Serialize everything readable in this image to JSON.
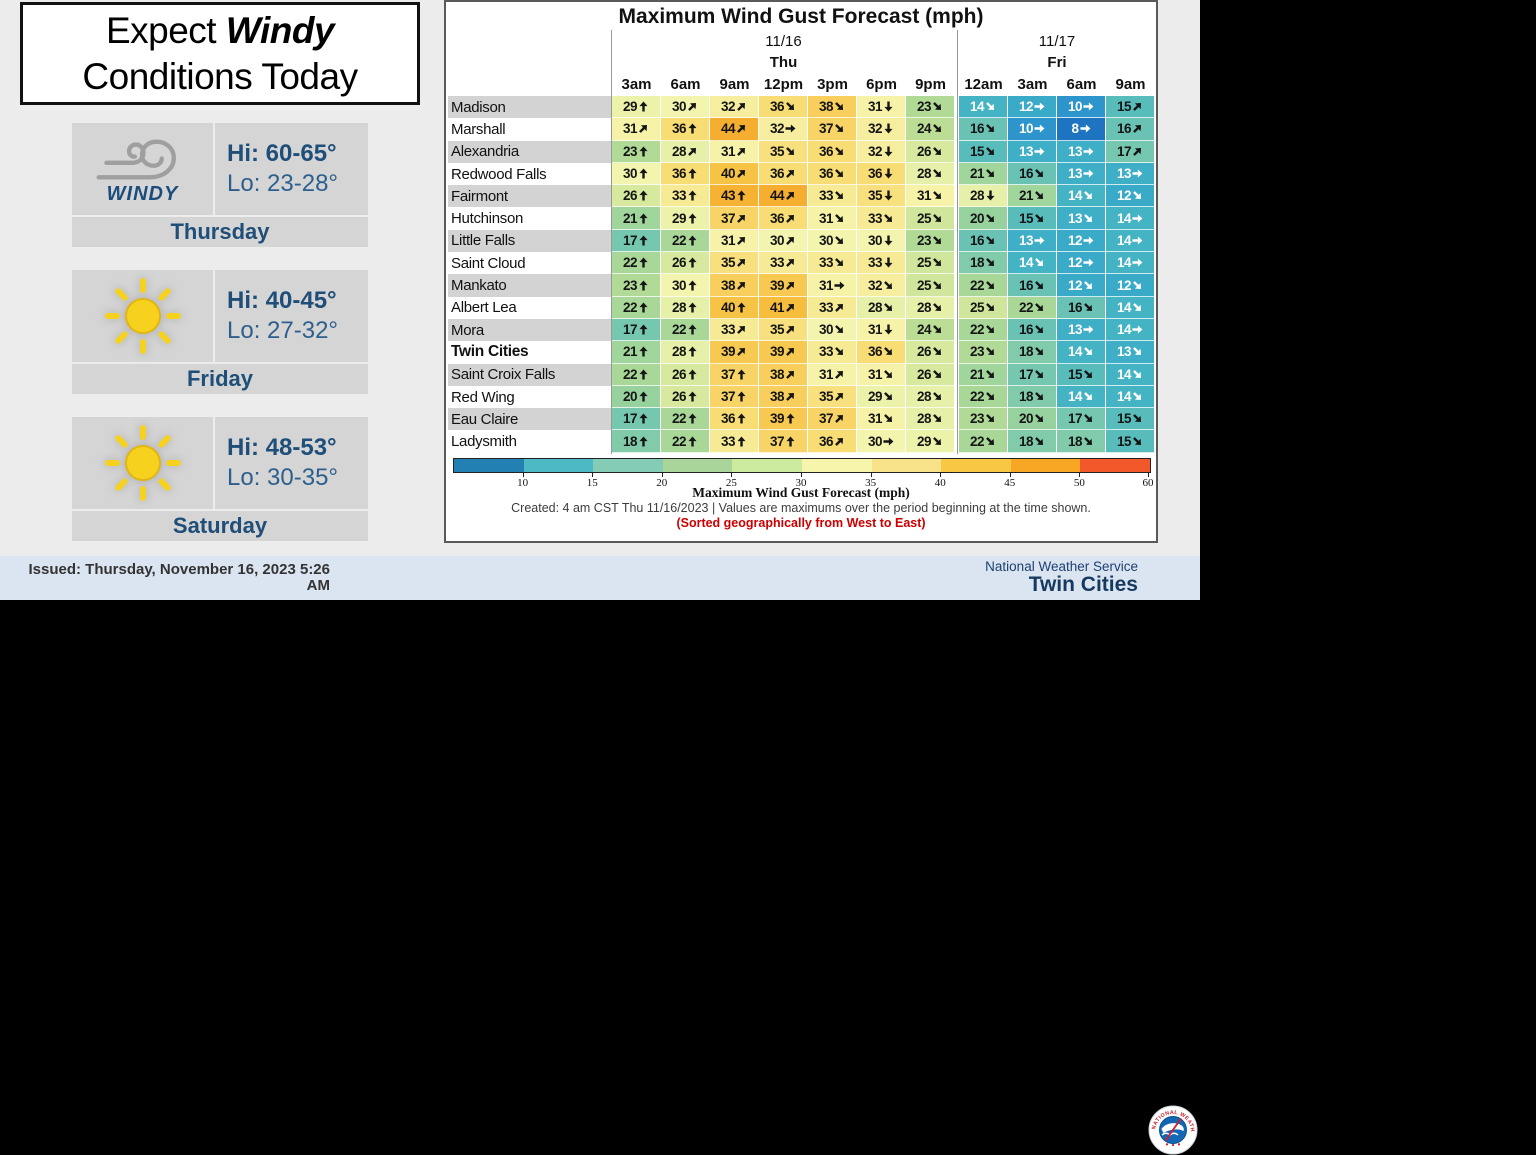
{
  "headline": {
    "prefix": "Expect",
    "emphasis": "Windy",
    "line2": "Conditions Today"
  },
  "forecast_cards": [
    {
      "day": "Thursday",
      "icon": "wind-icon",
      "icon_label": "WINDY",
      "hi": "Hi: 60-65°",
      "lo": "Lo: 23-28°"
    },
    {
      "day": "Friday",
      "icon": "sun-icon",
      "hi": "Hi: 40-45°",
      "lo": "Lo: 27-32°"
    },
    {
      "day": "Saturday",
      "icon": "sun-icon",
      "hi": "Hi: 48-53°",
      "lo": "Lo: 30-35°"
    }
  ],
  "footer": {
    "issued_line1": "Issued: Thursday, November 16, 2023 5:26",
    "issued_line2": "AM",
    "agency": "National Weather Service",
    "office": "Twin Cities",
    "bg": "#dbe5f1"
  },
  "chart_data": {
    "type": "heatmap",
    "title": "Maximum Wind Gust Forecast (mph)",
    "day_groups": [
      {
        "date": "11/16",
        "day": "Thu",
        "span": 7
      },
      {
        "date": "11/17",
        "day": "Fri",
        "span": 4
      }
    ],
    "times": [
      "3am",
      "6am",
      "9am",
      "12pm",
      "3pm",
      "6pm",
      "9pm",
      "12am",
      "3am",
      "6am",
      "9am"
    ],
    "rows": [
      {
        "city": "Madison",
        "cells": [
          [
            29,
            "N"
          ],
          [
            30,
            "NE"
          ],
          [
            32,
            "NE"
          ],
          [
            36,
            "SE"
          ],
          [
            38,
            "SE"
          ],
          [
            31,
            "S"
          ],
          [
            23,
            "SE"
          ],
          [
            14,
            "SE"
          ],
          [
            12,
            "E"
          ],
          [
            10,
            "E"
          ],
          [
            15,
            "NE"
          ]
        ]
      },
      {
        "city": "Marshall",
        "cells": [
          [
            31,
            "NE"
          ],
          [
            36,
            "N"
          ],
          [
            44,
            "NE"
          ],
          [
            32,
            "E"
          ],
          [
            37,
            "SE"
          ],
          [
            32,
            "S"
          ],
          [
            24,
            "SE"
          ],
          [
            16,
            "SE"
          ],
          [
            10,
            "E"
          ],
          [
            8,
            "E"
          ],
          [
            16,
            "NE"
          ]
        ]
      },
      {
        "city": "Alexandria",
        "cells": [
          [
            23,
            "N"
          ],
          [
            28,
            "NE"
          ],
          [
            31,
            "NE"
          ],
          [
            35,
            "SE"
          ],
          [
            36,
            "SE"
          ],
          [
            32,
            "S"
          ],
          [
            26,
            "SE"
          ],
          [
            15,
            "SE"
          ],
          [
            13,
            "E"
          ],
          [
            13,
            "E"
          ],
          [
            17,
            "NE"
          ]
        ]
      },
      {
        "city": "Redwood Falls",
        "cells": [
          [
            30,
            "N"
          ],
          [
            36,
            "N"
          ],
          [
            40,
            "NE"
          ],
          [
            36,
            "NE"
          ],
          [
            36,
            "SE"
          ],
          [
            36,
            "S"
          ],
          [
            28,
            "SE"
          ],
          [
            21,
            "SE"
          ],
          [
            16,
            "SE"
          ],
          [
            13,
            "E"
          ],
          [
            13,
            "E"
          ]
        ]
      },
      {
        "city": "Fairmont",
        "cells": [
          [
            26,
            "N"
          ],
          [
            33,
            "N"
          ],
          [
            43,
            "N"
          ],
          [
            44,
            "NE"
          ],
          [
            33,
            "SE"
          ],
          [
            35,
            "S"
          ],
          [
            31,
            "SE"
          ],
          [
            28,
            "S"
          ],
          [
            21,
            "SE"
          ],
          [
            14,
            "SE"
          ],
          [
            12,
            "SE"
          ]
        ]
      },
      {
        "city": "Hutchinson",
        "cells": [
          [
            21,
            "N"
          ],
          [
            29,
            "N"
          ],
          [
            37,
            "NE"
          ],
          [
            36,
            "NE"
          ],
          [
            31,
            "SE"
          ],
          [
            33,
            "SE"
          ],
          [
            25,
            "SE"
          ],
          [
            20,
            "SE"
          ],
          [
            15,
            "SE"
          ],
          [
            13,
            "SE"
          ],
          [
            14,
            "E"
          ]
        ]
      },
      {
        "city": "Little Falls",
        "cells": [
          [
            17,
            "N"
          ],
          [
            22,
            "N"
          ],
          [
            31,
            "NE"
          ],
          [
            30,
            "NE"
          ],
          [
            30,
            "SE"
          ],
          [
            30,
            "S"
          ],
          [
            23,
            "SE"
          ],
          [
            16,
            "SE"
          ],
          [
            13,
            "E"
          ],
          [
            12,
            "E"
          ],
          [
            14,
            "E"
          ]
        ]
      },
      {
        "city": "Saint Cloud",
        "cells": [
          [
            22,
            "N"
          ],
          [
            26,
            "N"
          ],
          [
            35,
            "NE"
          ],
          [
            33,
            "NE"
          ],
          [
            33,
            "SE"
          ],
          [
            33,
            "S"
          ],
          [
            25,
            "SE"
          ],
          [
            18,
            "SE"
          ],
          [
            14,
            "SE"
          ],
          [
            12,
            "E"
          ],
          [
            14,
            "E"
          ]
        ]
      },
      {
        "city": "Mankato",
        "cells": [
          [
            23,
            "N"
          ],
          [
            30,
            "N"
          ],
          [
            38,
            "NE"
          ],
          [
            39,
            "NE"
          ],
          [
            31,
            "E"
          ],
          [
            32,
            "SE"
          ],
          [
            25,
            "SE"
          ],
          [
            22,
            "SE"
          ],
          [
            16,
            "SE"
          ],
          [
            12,
            "SE"
          ],
          [
            12,
            "SE"
          ]
        ]
      },
      {
        "city": "Albert Lea",
        "cells": [
          [
            22,
            "N"
          ],
          [
            28,
            "N"
          ],
          [
            40,
            "N"
          ],
          [
            41,
            "NE"
          ],
          [
            33,
            "NE"
          ],
          [
            28,
            "SE"
          ],
          [
            28,
            "SE"
          ],
          [
            25,
            "SE"
          ],
          [
            22,
            "SE"
          ],
          [
            16,
            "SE"
          ],
          [
            14,
            "SE"
          ]
        ]
      },
      {
        "city": "Mora",
        "cells": [
          [
            17,
            "N"
          ],
          [
            22,
            "N"
          ],
          [
            33,
            "NE"
          ],
          [
            35,
            "NE"
          ],
          [
            30,
            "SE"
          ],
          [
            31,
            "S"
          ],
          [
            24,
            "SE"
          ],
          [
            22,
            "SE"
          ],
          [
            16,
            "SE"
          ],
          [
            13,
            "E"
          ],
          [
            14,
            "E"
          ]
        ]
      },
      {
        "city": "Twin Cities",
        "bold": true,
        "cells": [
          [
            21,
            "N"
          ],
          [
            28,
            "N"
          ],
          [
            39,
            "NE"
          ],
          [
            39,
            "NE"
          ],
          [
            33,
            "SE"
          ],
          [
            36,
            "SE"
          ],
          [
            26,
            "SE"
          ],
          [
            23,
            "SE"
          ],
          [
            18,
            "SE"
          ],
          [
            14,
            "SE"
          ],
          [
            13,
            "SE"
          ]
        ]
      },
      {
        "city": "Saint Croix Falls",
        "cells": [
          [
            22,
            "N"
          ],
          [
            26,
            "N"
          ],
          [
            37,
            "N"
          ],
          [
            38,
            "NE"
          ],
          [
            31,
            "NE"
          ],
          [
            31,
            "SE"
          ],
          [
            26,
            "SE"
          ],
          [
            21,
            "SE"
          ],
          [
            17,
            "SE"
          ],
          [
            15,
            "SE"
          ],
          [
            14,
            "SE"
          ]
        ]
      },
      {
        "city": "Red Wing",
        "cells": [
          [
            20,
            "N"
          ],
          [
            26,
            "N"
          ],
          [
            37,
            "N"
          ],
          [
            38,
            "NE"
          ],
          [
            35,
            "NE"
          ],
          [
            29,
            "SE"
          ],
          [
            28,
            "SE"
          ],
          [
            22,
            "SE"
          ],
          [
            18,
            "SE"
          ],
          [
            14,
            "SE"
          ],
          [
            14,
            "SE"
          ]
        ]
      },
      {
        "city": "Eau Claire",
        "cells": [
          [
            17,
            "N"
          ],
          [
            22,
            "N"
          ],
          [
            36,
            "N"
          ],
          [
            39,
            "N"
          ],
          [
            37,
            "NE"
          ],
          [
            31,
            "SE"
          ],
          [
            28,
            "SE"
          ],
          [
            23,
            "SE"
          ],
          [
            20,
            "SE"
          ],
          [
            17,
            "SE"
          ],
          [
            15,
            "SE"
          ]
        ]
      },
      {
        "city": "Ladysmith",
        "cells": [
          [
            18,
            "N"
          ],
          [
            22,
            "N"
          ],
          [
            33,
            "N"
          ],
          [
            37,
            "N"
          ],
          [
            36,
            "NE"
          ],
          [
            30,
            "E"
          ],
          [
            29,
            "SE"
          ],
          [
            22,
            "SE"
          ],
          [
            18,
            "SE"
          ],
          [
            18,
            "SE"
          ],
          [
            15,
            "SE"
          ]
        ]
      }
    ],
    "value_color_stops": [
      [
        8,
        "#1e74c0"
      ],
      [
        10,
        "#2d95cc"
      ],
      [
        12,
        "#3aaac9"
      ],
      [
        14,
        "#44b4c4"
      ],
      [
        15,
        "#58bcba"
      ],
      [
        16,
        "#6ac2b4"
      ],
      [
        18,
        "#81cbaa"
      ],
      [
        20,
        "#97d29e"
      ],
      [
        22,
        "#a8d798"
      ],
      [
        24,
        "#bcdd95"
      ],
      [
        25,
        "#cfe69c"
      ],
      [
        26,
        "#d6e99e"
      ],
      [
        28,
        "#e7f0a8"
      ],
      [
        30,
        "#f3f4ae"
      ],
      [
        31,
        "#f6f2a8"
      ],
      [
        32,
        "#f6ee9e"
      ],
      [
        33,
        "#f7ea94"
      ],
      [
        35,
        "#f8e07e"
      ],
      [
        36,
        "#f8dc74"
      ],
      [
        37,
        "#f8d466"
      ],
      [
        38,
        "#f8cf5c"
      ],
      [
        39,
        "#f8c950"
      ],
      [
        40,
        "#f7c344"
      ],
      [
        41,
        "#f7bd3c"
      ],
      [
        43,
        "#f6b233"
      ],
      [
        44,
        "#f5ae2f"
      ]
    ],
    "white_text_max": 14,
    "colorbar": {
      "segment_colors": [
        "#2380b2",
        "#4db9c4",
        "#85ccb7",
        "#a9d49a",
        "#cdeb9e",
        "#f6f5ab",
        "#f7e289",
        "#f8c845",
        "#f7a724",
        "#f2582a"
      ],
      "tick_labels": [
        "10",
        "15",
        "20",
        "25",
        "30",
        "35",
        "40",
        "45",
        "50",
        "60"
      ],
      "axis_label": "Maximum Wind Gust Forecast (mph)",
      "range": [
        5,
        60
      ]
    },
    "created_note": "Created: 4 am CST Thu 11/16/2023  |  Values are maximums over the period beginning at the time shown.",
    "sort_note": "(Sorted geographically from West to East)",
    "sort_note_color": "#cc0000"
  }
}
